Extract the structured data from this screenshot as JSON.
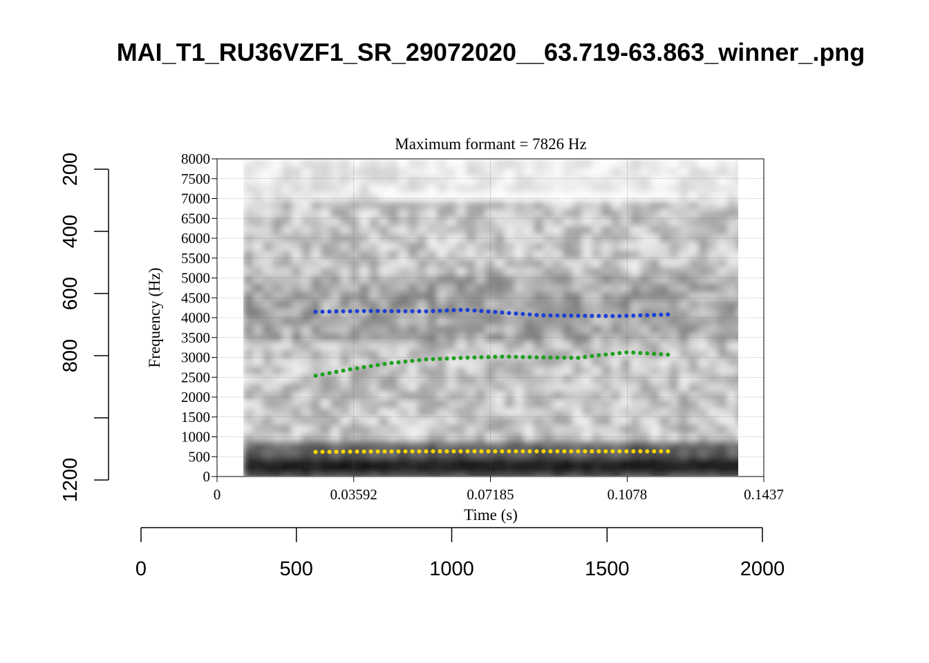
{
  "figure": {
    "title": "MAI_T1_RU36VZF1_SR_29072020__63.719-63.863_winner_.png"
  },
  "chart_data": [
    {
      "type": "scatter",
      "title": "Maximum formant = 7826 Hz",
      "xlabel": "Time (s)",
      "ylabel": "Frequency (Hz)",
      "xlim": [
        0,
        0.1437
      ],
      "ylim": [
        0,
        8000
      ],
      "x_ticks": [
        "0",
        "0.03592",
        "0.07185",
        "0.1078",
        "0.1437"
      ],
      "y_ticks": [
        "0",
        "500",
        "1000",
        "1500",
        "2000",
        "2500",
        "3000",
        "3500",
        "4000",
        "4500",
        "5000",
        "5500",
        "6000",
        "6500",
        "7000",
        "7500",
        "8000"
      ],
      "grid": true,
      "background": "spectrogram (greyscale)",
      "series": [
        {
          "color": "#ffd700",
          "time_range": [
            0.0259,
            0.1185
          ],
          "points": [
            [
              0.0259,
              620
            ],
            [
              0.04,
              630
            ],
            [
              0.06,
              635
            ],
            [
              0.08,
              635
            ],
            [
              0.1,
              635
            ],
            [
              0.1185,
              635
            ]
          ]
        },
        {
          "color": "#1fa01f",
          "time_range": [
            0.0259,
            0.1185
          ],
          "points": [
            [
              0.0259,
              2540
            ],
            [
              0.035,
              2700
            ],
            [
              0.045,
              2850
            ],
            [
              0.055,
              2950
            ],
            [
              0.065,
              2990
            ],
            [
              0.075,
              3020
            ],
            [
              0.085,
              3000
            ],
            [
              0.095,
              2990
            ],
            [
              0.1,
              3050
            ],
            [
              0.108,
              3130
            ],
            [
              0.1185,
              3070
            ]
          ]
        },
        {
          "color": "#1a3fd6",
          "time_range": [
            0.0259,
            0.1185
          ],
          "points": [
            [
              0.0259,
              4150
            ],
            [
              0.04,
              4170
            ],
            [
              0.055,
              4160
            ],
            [
              0.065,
              4200
            ],
            [
              0.075,
              4130
            ],
            [
              0.085,
              4060
            ],
            [
              0.095,
              4050
            ],
            [
              0.105,
              4040
            ],
            [
              0.1185,
              4080
            ]
          ]
        }
      ]
    },
    {
      "type": "axes",
      "x_ticks": [
        "0",
        "500",
        "1000",
        "1500",
        "2000"
      ],
      "y_ticks": [
        "200",
        "400",
        "600",
        "800",
        "1200"
      ]
    }
  ]
}
